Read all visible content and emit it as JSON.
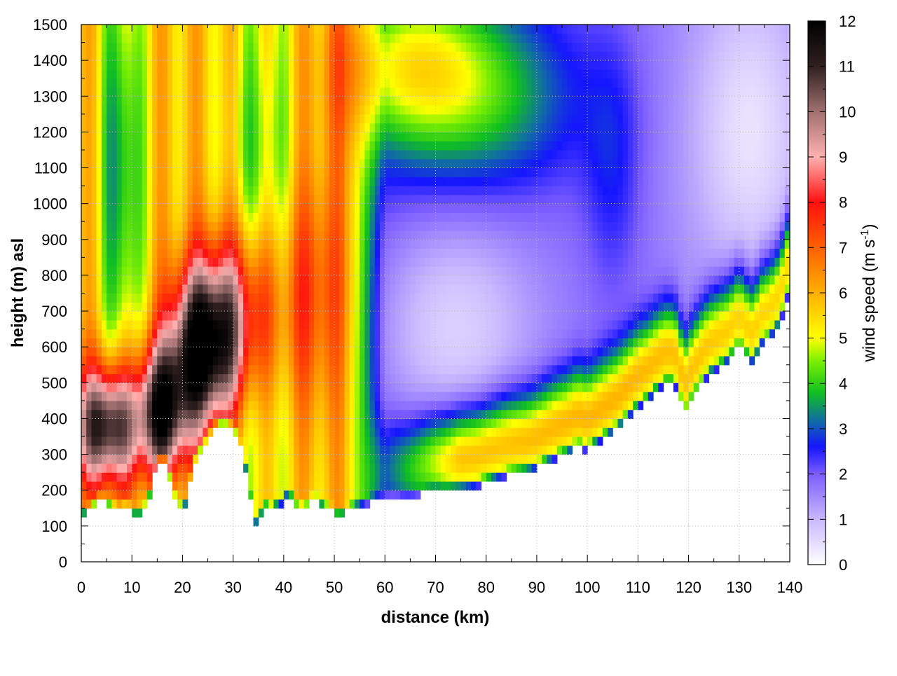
{
  "chart_data": {
    "type": "heatmap",
    "title": "",
    "xlabel": "distance (km)",
    "ylabel": "height (m) asl",
    "xlim": [
      0,
      140
    ],
    "ylim": [
      0,
      1500
    ],
    "x_ticks": [
      "0",
      "10",
      "20",
      "30",
      "40",
      "50",
      "60",
      "70",
      "80",
      "90",
      "100",
      "110",
      "120",
      "130",
      "140"
    ],
    "y_ticks": [
      "0",
      "100",
      "200",
      "300",
      "400",
      "500",
      "600",
      "700",
      "800",
      "900",
      "1000",
      "1100",
      "1200",
      "1300",
      "1400",
      "1500"
    ],
    "grid": true,
    "colorbar": {
      "label_main": "wind speed (m s",
      "label_sup": "-1",
      "label_close": ")",
      "range": [
        0,
        12
      ],
      "ticks": [
        "0",
        "1",
        "2",
        "3",
        "4",
        "5",
        "6",
        "7",
        "8",
        "9",
        "10",
        "11",
        "12"
      ],
      "colormap": [
        {
          "value": 0,
          "color": "#ffffff"
        },
        {
          "value": 1,
          "color": "#c9b8ff"
        },
        {
          "value": 2,
          "color": "#7b5cff"
        },
        {
          "value": 2.6,
          "color": "#1515ff"
        },
        {
          "value": 3.2,
          "color": "#1070a0"
        },
        {
          "value": 3.8,
          "color": "#10c020"
        },
        {
          "value": 4.5,
          "color": "#7cf000"
        },
        {
          "value": 5,
          "color": "#ffff00"
        },
        {
          "value": 6,
          "color": "#ffb000"
        },
        {
          "value": 7,
          "color": "#ff6000"
        },
        {
          "value": 8,
          "color": "#ff1010"
        },
        {
          "value": 9,
          "color": "#ffb0b0"
        },
        {
          "value": 10,
          "color": "#a07070"
        },
        {
          "value": 11,
          "color": "#302020"
        },
        {
          "value": 12,
          "color": "#000000"
        }
      ]
    },
    "terrain_height": [
      [
        0,
        140
      ],
      [
        1,
        135
      ],
      [
        2,
        150
      ],
      [
        3,
        165
      ],
      [
        4,
        170
      ],
      [
        5,
        160
      ],
      [
        6,
        150
      ],
      [
        7,
        140
      ],
      [
        8,
        145
      ],
      [
        9,
        150
      ],
      [
        10,
        140
      ],
      [
        11,
        130
      ],
      [
        12,
        135
      ],
      [
        13,
        160
      ],
      [
        14,
        210
      ],
      [
        15,
        270
      ],
      [
        16,
        290
      ],
      [
        17,
        270
      ],
      [
        18,
        200
      ],
      [
        19,
        150
      ],
      [
        20,
        145
      ],
      [
        21,
        180
      ],
      [
        22,
        260
      ],
      [
        23,
        300
      ],
      [
        24,
        320
      ],
      [
        25,
        340
      ],
      [
        26,
        360
      ],
      [
        27,
        380
      ],
      [
        28,
        390
      ],
      [
        29,
        380
      ],
      [
        30,
        370
      ],
      [
        31,
        340
      ],
      [
        32,
        290
      ],
      [
        33,
        220
      ],
      [
        34,
        120
      ],
      [
        35,
        95
      ],
      [
        36,
        170
      ],
      [
        37,
        140
      ],
      [
        38,
        150
      ],
      [
        39,
        160
      ],
      [
        40,
        165
      ],
      [
        41,
        200
      ],
      [
        42,
        155
      ],
      [
        43,
        150
      ],
      [
        44,
        145
      ],
      [
        45,
        160
      ],
      [
        46,
        175
      ],
      [
        47,
        160
      ],
      [
        48,
        150
      ],
      [
        49,
        145
      ],
      [
        50,
        135
      ],
      [
        52,
        135
      ],
      [
        54,
        150
      ],
      [
        56,
        160
      ],
      [
        58,
        170
      ],
      [
        60,
        175
      ],
      [
        62,
        180
      ],
      [
        64,
        178
      ],
      [
        66,
        182
      ],
      [
        68,
        190
      ],
      [
        70,
        195
      ],
      [
        72,
        195
      ],
      [
        74,
        200
      ],
      [
        76,
        205
      ],
      [
        78,
        210
      ],
      [
        80,
        220
      ],
      [
        82,
        230
      ],
      [
        84,
        240
      ],
      [
        86,
        245
      ],
      [
        88,
        250
      ],
      [
        90,
        260
      ],
      [
        92,
        275
      ],
      [
        94,
        290
      ],
      [
        96,
        300
      ],
      [
        98,
        320
      ],
      [
        100,
        310
      ],
      [
        102,
        330
      ],
      [
        104,
        350
      ],
      [
        106,
        370
      ],
      [
        108,
        400
      ],
      [
        110,
        430
      ],
      [
        112,
        450
      ],
      [
        114,
        480
      ],
      [
        116,
        500
      ],
      [
        118,
        480
      ],
      [
        119,
        400
      ],
      [
        120,
        430
      ],
      [
        122,
        480
      ],
      [
        124,
        520
      ],
      [
        126,
        540
      ],
      [
        128,
        560
      ],
      [
        130,
        600
      ],
      [
        132,
        560
      ],
      [
        133,
        550
      ],
      [
        134,
        600
      ],
      [
        136,
        620
      ],
      [
        138,
        660
      ],
      [
        140,
        760
      ]
    ],
    "cells_dx_km": 1,
    "cells_dz_m": 25,
    "cells_note_units": "wind speed in m s-1; contour field estimated from image"
  }
}
